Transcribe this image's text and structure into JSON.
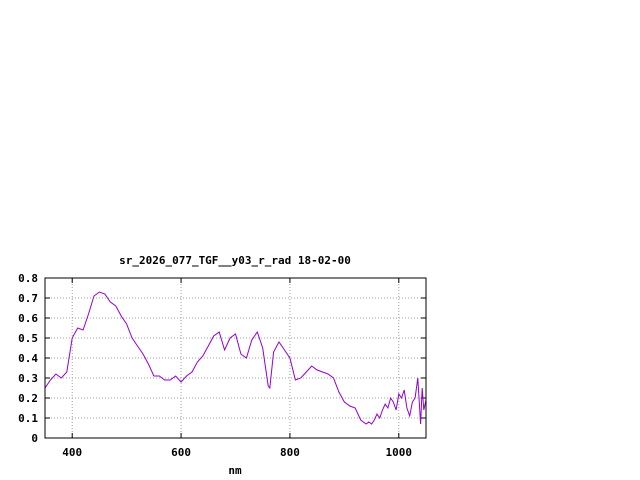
{
  "chart_data": {
    "type": "line",
    "title": "sr_2026_077_TGF__y03_r_rad 18-02-00",
    "xlabel": "nm",
    "ylabel": "",
    "xlim": [
      350,
      1050
    ],
    "ylim": [
      0,
      0.8
    ],
    "xticks": [
      400,
      600,
      800,
      1000
    ],
    "xtick_labels": [
      "400",
      "600",
      "800",
      "1000"
    ],
    "yticks": [
      0,
      0.1,
      0.2,
      0.3,
      0.4,
      0.5,
      0.6,
      0.7,
      0.8
    ],
    "ytick_labels": [
      "0",
      "0.1",
      "0.2",
      "0.3",
      "0.4",
      "0.5",
      "0.6",
      "0.7",
      "0.8"
    ],
    "grid": true,
    "legend": false,
    "colors": {
      "series": "#9400d3"
    },
    "series": [
      {
        "x": [
          350,
          360,
          370,
          380,
          390,
          400,
          410,
          420,
          430,
          440,
          450,
          460,
          470,
          480,
          490,
          500,
          510,
          520,
          530,
          540,
          550,
          560,
          570,
          580,
          590,
          600,
          610,
          620,
          630,
          640,
          650,
          660,
          670,
          680,
          690,
          700,
          710,
          720,
          730,
          740,
          750,
          760,
          763,
          770,
          780,
          790,
          800,
          810,
          820,
          830,
          840,
          850,
          860,
          870,
          880,
          890,
          900,
          910,
          920,
          930,
          940,
          945,
          950,
          955,
          960,
          965,
          970,
          975,
          980,
          985,
          990,
          995,
          1000,
          1005,
          1010,
          1015,
          1020,
          1025,
          1030,
          1035,
          1040,
          1043,
          1046,
          1050
        ],
        "values": [
          0.25,
          0.29,
          0.32,
          0.3,
          0.33,
          0.5,
          0.55,
          0.54,
          0.62,
          0.71,
          0.73,
          0.72,
          0.68,
          0.66,
          0.61,
          0.57,
          0.5,
          0.46,
          0.42,
          0.37,
          0.31,
          0.31,
          0.29,
          0.29,
          0.31,
          0.28,
          0.31,
          0.33,
          0.38,
          0.41,
          0.46,
          0.51,
          0.53,
          0.44,
          0.5,
          0.52,
          0.42,
          0.4,
          0.49,
          0.53,
          0.45,
          0.26,
          0.25,
          0.43,
          0.48,
          0.44,
          0.4,
          0.29,
          0.3,
          0.33,
          0.36,
          0.34,
          0.33,
          0.32,
          0.3,
          0.23,
          0.18,
          0.16,
          0.15,
          0.09,
          0.07,
          0.08,
          0.07,
          0.09,
          0.12,
          0.1,
          0.14,
          0.17,
          0.15,
          0.2,
          0.18,
          0.14,
          0.22,
          0.2,
          0.24,
          0.15,
          0.11,
          0.18,
          0.2,
          0.3,
          0.07,
          0.25,
          0.14,
          0.19
        ]
      }
    ]
  }
}
